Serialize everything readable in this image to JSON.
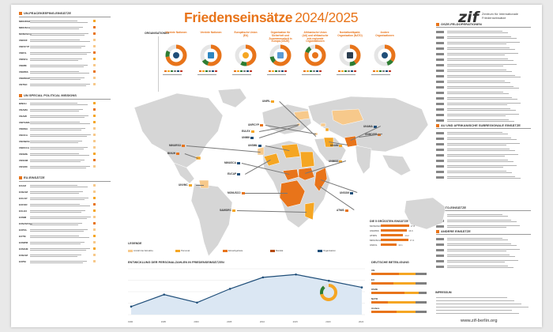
{
  "poster": {
    "title": "Friedenseinsätze",
    "years": "2024/2025",
    "logo_mark": "zif",
    "logo_text": "Zentrum für Internationale Friedenseinsätze",
    "footer_url": "www.zif-berlin.org"
  },
  "left": {
    "sections": [
      {
        "name": "UN-PEACEKEEPING-EINSÄTZE",
        "rows": [
          {
            "code": "MINURSO",
            "color": "#f5a623"
          },
          {
            "code": "MINUSCA",
            "color": "#e8741a"
          },
          {
            "code": "MONUSCO",
            "color": "#e8741a"
          },
          {
            "code": "UNDOF",
            "color": "#f7c98b"
          },
          {
            "code": "UNFICYP",
            "color": "#f7c98b"
          },
          {
            "code": "UNIFIL",
            "color": "#e8741a"
          },
          {
            "code": "UNISFA",
            "color": "#f5a623"
          },
          {
            "code": "UNMIK",
            "color": "#f7c98b"
          },
          {
            "code": "UNMISS",
            "color": "#e8741a"
          },
          {
            "code": "UNMOGIP",
            "color": "#f7c98b"
          },
          {
            "code": "UNTSO",
            "color": "#f7c98b"
          }
        ]
      },
      {
        "name": "UN SPECIAL POLITICAL MISSIONS",
        "rows": [
          {
            "code": "BINUH",
            "color": "#f5a623"
          },
          {
            "code": "UNAMA",
            "color": "#e8741a"
          },
          {
            "code": "UNAMI",
            "color": "#f5a623"
          },
          {
            "code": "UNITAMS",
            "color": "#f5a623"
          },
          {
            "code": "UNMHA",
            "color": "#f7c98b"
          },
          {
            "code": "UNOCA",
            "color": "#f7c98b"
          },
          {
            "code": "UNOWAS",
            "color": "#f7c98b"
          },
          {
            "code": "UNRCCA",
            "color": "#f7c98b"
          },
          {
            "code": "UNSMIL",
            "color": "#f5a623"
          },
          {
            "code": "UNSOM",
            "color": "#e8741a"
          },
          {
            "code": "UNVMC",
            "color": "#f7c98b"
          }
        ]
      },
      {
        "name": "EU-EINSÄTZE",
        "rows": [
          {
            "code": "EUAM",
            "color": "#f7c98b"
          },
          {
            "code": "EUBAM",
            "color": "#f7c98b"
          },
          {
            "code": "EUCAP",
            "color": "#f5a623"
          },
          {
            "code": "EUFOR",
            "color": "#e8741a"
          },
          {
            "code": "EULEX",
            "color": "#f5a623"
          },
          {
            "code": "EUMM",
            "color": "#f7c98b"
          },
          {
            "code": "EUNAVFOR",
            "color": "#e8741a"
          },
          {
            "code": "EUPOL",
            "color": "#f7c98b"
          },
          {
            "code": "EUTM",
            "color": "#f5a623"
          },
          {
            "code": "EUMPM",
            "color": "#f7c98b"
          },
          {
            "code": "EUMAM",
            "color": "#f5a623"
          },
          {
            "code": "EUBAM",
            "color": "#f7c98b"
          },
          {
            "code": "EUPM",
            "color": "#f7c98b"
          }
        ]
      }
    ]
  },
  "right": {
    "sections": [
      {
        "name": "OSZE-FELDOPERATIONEN",
        "rows": 17
      },
      {
        "name": "AU UND AFRIKANISCHE SUBREGIONALE EINSÄTZE",
        "rows": 9
      },
      {
        "name": "NATO-EINSÄTZE",
        "rows": 3
      },
      {
        "name": "ANDERE EINSÄTZE",
        "rows": 6
      }
    ],
    "impressum": "IMPRESSUM"
  },
  "organisations": {
    "heading": "ORGANISATIONEN",
    "cards": [
      {
        "title": "Vereinte Nationen",
        "color": "#1f4e79",
        "fill": 0.72
      },
      {
        "title": "Vereinte Nationen",
        "color": "#2e86c1",
        "fill": 0.55
      },
      {
        "title": "Europäische Union (EU)",
        "color": "#f5a623",
        "fill": 0.48
      },
      {
        "title": "Organisation für Sicherheit und Zusammenarbeit in Europa (OSZE)",
        "color": "#5b9bd5",
        "fill": 0.62
      },
      {
        "title": "Afrikanische Union (AU) und afrikanische sub-regionale Organisationen",
        "color": "#e8741a",
        "fill": 0.8
      },
      {
        "title": "Nordatlantikpakt-Organisation (NATO)",
        "color": "#2c3e50",
        "fill": 0.4
      },
      {
        "title": "Andere Organisationen",
        "color": "#1f4e79",
        "fill": 0.35
      }
    ]
  },
  "map": {
    "labels": [
      {
        "text": "UNFICYP"
      },
      {
        "text": "EULEX"
      },
      {
        "text": "UNMIK"
      },
      {
        "text": "MINURSO"
      },
      {
        "text": "UNIFIL"
      },
      {
        "text": "UNAMA"
      },
      {
        "text": "BINUH"
      },
      {
        "text": "UNVMC"
      },
      {
        "text": "MINUSCA"
      },
      {
        "text": "MONUSCO"
      },
      {
        "text": "UNMISS"
      },
      {
        "text": "UNSOM"
      },
      {
        "text": "UNMOGIP"
      },
      {
        "text": "UNAMI"
      },
      {
        "text": "UNSMIL"
      },
      {
        "text": "ATMIS"
      },
      {
        "text": "SAMIDRC"
      },
      {
        "text": "EUCAP"
      }
    ]
  },
  "biggest": {
    "heading": "DIE 5 GRÖSSTEN EINSÄTZE",
    "items": [
      {
        "name": "MONUSCO",
        "value": 17.8
      },
      {
        "name": "UNMISS",
        "value": 16.6
      },
      {
        "name": "ATMIS",
        "value": 14.2
      },
      {
        "name": "MINUSCA",
        "value": 17.4
      },
      {
        "name": "UNIFIL",
        "value": 10.1
      }
    ]
  },
  "legend": {
    "heading": "LEGENDE",
    "items": [
      {
        "label": "Anzahl der Einsätze",
        "color": "#f7c98b"
      },
      {
        "label": "Personal",
        "color": "#f5a623"
      },
      {
        "label": "Einsatzgebiete",
        "color": "#e8741a"
      },
      {
        "label": "Mandat",
        "color": "#b44a12"
      },
      {
        "label": "Organisation",
        "color": "#1f4e79"
      }
    ]
  },
  "chart_data": {
    "type": "line",
    "title": "ENTWICKLUNG DER PERSONALZAHLEN IN FRIEDENSEINSÄTZEN",
    "x": [
      "1990",
      "1995",
      "2000",
      "2005",
      "2010",
      "2015",
      "2020",
      "2024"
    ],
    "values": [
      28,
      70,
      42,
      90,
      130,
      140,
      118,
      95
    ],
    "ylim": [
      0,
      160
    ]
  },
  "germany": {
    "heading": "DEUTSCHE BETEILIGUNG",
    "rows": [
      {
        "label": "UN",
        "parts": [
          0.5,
          0.3,
          0.2
        ]
      },
      {
        "label": "EU",
        "parts": [
          0.4,
          0.4,
          0.2
        ]
      },
      {
        "label": "OSZE",
        "parts": [
          0.6,
          0.25,
          0.15
        ]
      },
      {
        "label": "NATO",
        "parts": [
          0.3,
          0.5,
          0.2
        ]
      },
      {
        "label": "Andere",
        "parts": [
          0.45,
          0.35,
          0.2
        ]
      }
    ],
    "part_colors": [
      "#e8741a",
      "#f5a623",
      "#7f7f7f"
    ]
  }
}
